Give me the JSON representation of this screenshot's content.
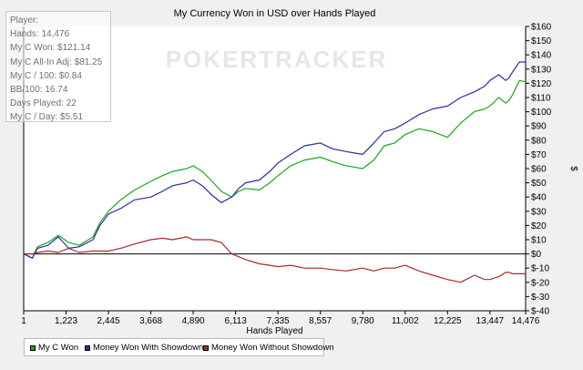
{
  "chart_data": {
    "type": "line",
    "title": "My Currency Won in USD over Hands Played",
    "xlabel": "Hands Played",
    "ylabel": "$",
    "xlim": [
      1,
      14476
    ],
    "ylim": [
      -40,
      160
    ],
    "x_ticks": [
      1,
      1223,
      2445,
      3668,
      4890,
      6113,
      7335,
      8557,
      9780,
      11002,
      12225,
      13447,
      14476
    ],
    "x_tick_labels": [
      "1",
      "1,223",
      "2,445",
      "3,668",
      "4,890",
      "6,113",
      "7,335",
      "8,557",
      "9,780",
      "11,002",
      "12,225",
      "13,447",
      "14,476"
    ],
    "y_ticks": [
      -40,
      -30,
      -20,
      -10,
      0,
      10,
      20,
      30,
      40,
      50,
      60,
      70,
      80,
      90,
      100,
      110,
      120,
      130,
      140,
      150,
      160
    ],
    "y_tick_labels": [
      "$-40",
      "$-30",
      "$-20",
      "$-10",
      "$0",
      "$10",
      "$20",
      "$30",
      "$40",
      "$50",
      "$60",
      "$70",
      "$80",
      "$90",
      "$100",
      "$110",
      "$120",
      "$130",
      "$140",
      "$150",
      "$160"
    ],
    "grid": false,
    "legend_position": "bottom-left",
    "watermark": "POKERTRACKER",
    "series": [
      {
        "name": "My C Won",
        "color": "#1aa81a",
        "x": [
          1,
          250,
          400,
          700,
          1000,
          1300,
          1600,
          2000,
          2200,
          2445,
          2800,
          3200,
          3668,
          4000,
          4300,
          4700,
          4890,
          5150,
          5400,
          5700,
          6000,
          6200,
          6400,
          6800,
          7100,
          7335,
          7700,
          8100,
          8557,
          8900,
          9300,
          9780,
          10100,
          10400,
          10700,
          11002,
          11400,
          11800,
          12225,
          12600,
          13000,
          13300,
          13447,
          13700,
          13900,
          14000,
          14100,
          14300,
          14476
        ],
        "y": [
          0,
          -3,
          5,
          8,
          13,
          8,
          6,
          12,
          22,
          30,
          38,
          45,
          51,
          55,
          58,
          60,
          62,
          58,
          52,
          44,
          40,
          44,
          46,
          45,
          50,
          55,
          62,
          66,
          68,
          65,
          62,
          60,
          66,
          76,
          78,
          84,
          88,
          86,
          82,
          92,
          100,
          102,
          104,
          110,
          106,
          108,
          112,
          122,
          121
        ]
      },
      {
        "name": "Money Won With Showdown",
        "color": "#2c2ca8",
        "x": [
          1,
          250,
          400,
          700,
          1000,
          1300,
          1600,
          2000,
          2200,
          2445,
          2800,
          3200,
          3668,
          4000,
          4300,
          4700,
          4890,
          5150,
          5400,
          5700,
          6000,
          6200,
          6400,
          6800,
          7100,
          7335,
          7700,
          8100,
          8557,
          8900,
          9300,
          9780,
          10100,
          10400,
          10700,
          11002,
          11400,
          11800,
          12225,
          12600,
          13000,
          13300,
          13447,
          13700,
          13900,
          14000,
          14100,
          14300,
          14476
        ],
        "y": [
          0,
          -3,
          4,
          6,
          12,
          4,
          5,
          10,
          20,
          28,
          32,
          38,
          40,
          44,
          48,
          50,
          52,
          48,
          42,
          36,
          40,
          46,
          50,
          52,
          58,
          64,
          70,
          76,
          78,
          74,
          72,
          70,
          78,
          86,
          88,
          92,
          98,
          102,
          104,
          110,
          114,
          118,
          122,
          126,
          122,
          124,
          128,
          135,
          135
        ]
      },
      {
        "name": "Money Won Without Showdown",
        "color": "#a82a2a",
        "x": [
          1,
          250,
          400,
          700,
          1000,
          1300,
          1600,
          2000,
          2200,
          2445,
          2800,
          3200,
          3668,
          4000,
          4300,
          4700,
          4890,
          5150,
          5400,
          5700,
          6000,
          6200,
          6400,
          6800,
          7100,
          7335,
          7700,
          8100,
          8557,
          8900,
          9300,
          9780,
          10100,
          10400,
          10700,
          11002,
          11400,
          11800,
          12225,
          12600,
          13000,
          13300,
          13447,
          13700,
          13900,
          14000,
          14100,
          14300,
          14476
        ],
        "y": [
          0,
          0,
          1,
          2,
          1,
          4,
          1,
          2,
          2,
          2,
          4,
          7,
          10,
          11,
          10,
          12,
          10,
          10,
          10,
          8,
          0,
          -2,
          -4,
          -7,
          -8,
          -9,
          -8,
          -10,
          -10,
          -11,
          -12,
          -10,
          -12,
          -10,
          -10,
          -8,
          -12,
          -15,
          -18,
          -20,
          -15,
          -18,
          -18,
          -16,
          -13,
          -13,
          -14,
          -14,
          -14
        ]
      }
    ]
  },
  "stats_panel": {
    "rows": [
      "Player:",
      "Hands: 14,476",
      "My C Won: $121.14",
      "My C All-In Adj: $81.25",
      "My C / 100: $0.84",
      "BB/100: 16.74",
      "Days Played: 22",
      "My C / Day: $5.51"
    ]
  }
}
